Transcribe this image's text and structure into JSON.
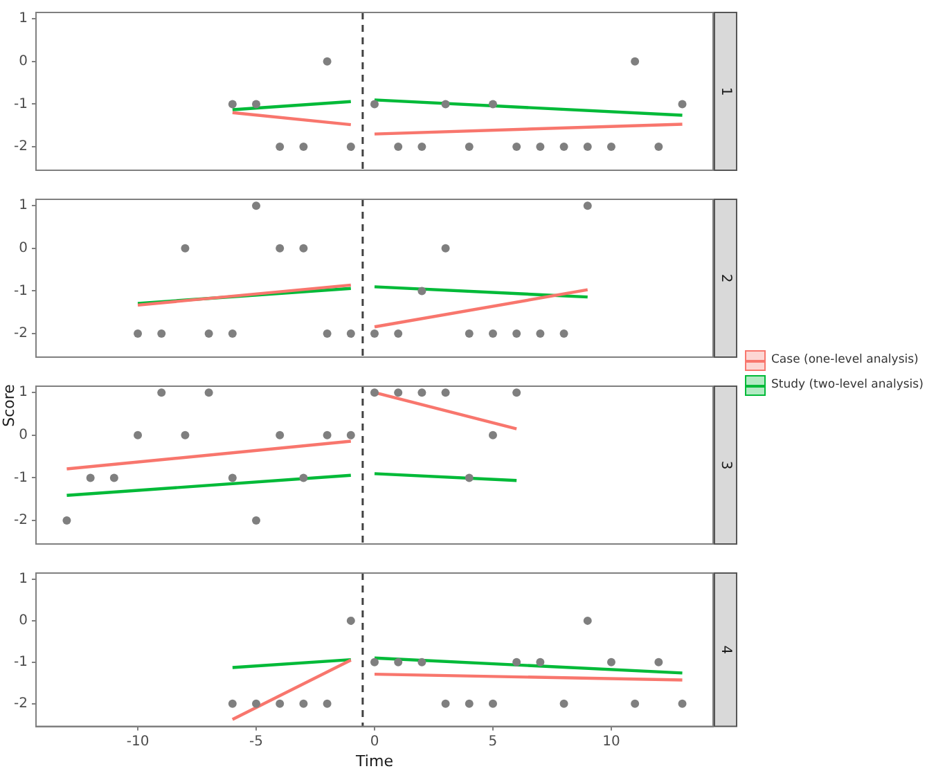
{
  "chart_data": [
    {
      "type": "scatter",
      "title": "1",
      "xlim": [
        -14.3,
        14.3
      ],
      "ylim": [
        -2.55,
        1.15
      ],
      "xticks": [
        -10,
        -5,
        0,
        5,
        10
      ],
      "yticks": [
        -2,
        -1,
        0,
        1
      ],
      "grid": false,
      "tick_labels": "y",
      "ref_lines": [
        {
          "axis": "x",
          "value": -0.5,
          "color": "#404040",
          "line_style": "dashed"
        }
      ],
      "series": [
        {
          "type": "scatter",
          "marker": "circle",
          "color": "#7f7f7f",
          "x": [
            -6,
            -5,
            -4,
            -3,
            -2,
            -1,
            0,
            1,
            2,
            3,
            4,
            5,
            6,
            7,
            8,
            9,
            10,
            11,
            12,
            13
          ],
          "values": [
            -1,
            -1,
            -2,
            -2,
            0,
            -2,
            -1,
            -2,
            -2,
            -1,
            -2,
            -1,
            -2,
            -2,
            -2,
            -2,
            -2,
            0,
            -2,
            -1
          ]
        },
        {
          "type": "line",
          "marker": "none",
          "color": "#f8766d",
          "x": [
            -6,
            -1
          ],
          "values": [
            -1.2,
            -1.48
          ]
        },
        {
          "type": "line",
          "marker": "none",
          "color": "#f8766d",
          "x": [
            0,
            13
          ],
          "values": [
            -1.7,
            -1.47
          ]
        },
        {
          "type": "line",
          "marker": "none",
          "color": "#00ba38",
          "x": [
            -6,
            -1
          ],
          "values": [
            -1.13,
            -0.94
          ]
        },
        {
          "type": "line",
          "marker": "none",
          "color": "#00ba38",
          "x": [
            0,
            13
          ],
          "values": [
            -0.9,
            -1.26
          ]
        }
      ]
    },
    {
      "type": "scatter",
      "title": "2",
      "xlim": [
        -14.3,
        14.3
      ],
      "ylim": [
        -2.55,
        1.15
      ],
      "xticks": [
        -10,
        -5,
        0,
        5,
        10
      ],
      "yticks": [
        -2,
        -1,
        0,
        1
      ],
      "grid": false,
      "tick_labels": "y",
      "legend": "right",
      "ref_lines": [
        {
          "axis": "x",
          "value": -0.5,
          "color": "#404040",
          "line_style": "dashed"
        }
      ],
      "series": [
        {
          "type": "scatter",
          "marker": "circle",
          "color": "#7f7f7f",
          "x": [
            -10,
            -9,
            -8,
            -7,
            -6,
            -5,
            -4,
            -3,
            -2,
            -1,
            0,
            1,
            2,
            3,
            4,
            5,
            6,
            7,
            8,
            9
          ],
          "values": [
            -2,
            -2,
            0,
            -2,
            -2,
            1,
            0,
            0,
            -2,
            -2,
            -2,
            -2,
            -1,
            0,
            -2,
            -2,
            -2,
            -2,
            -2,
            1
          ]
        },
        {
          "type": "line",
          "marker": "none",
          "name": "Case (one-level analysis)",
          "color": "#f8766d",
          "x": [
            -10,
            -1
          ],
          "values": [
            -1.33,
            -0.86
          ]
        },
        {
          "type": "line",
          "marker": "none",
          "color": "#f8766d",
          "x": [
            0,
            9
          ],
          "values": [
            -1.84,
            -0.97
          ]
        },
        {
          "type": "line",
          "marker": "none",
          "name": "Study (two-level analysis)",
          "color": "#00ba38",
          "x": [
            -10,
            -1
          ],
          "values": [
            -1.29,
            -0.94
          ]
        },
        {
          "type": "line",
          "marker": "none",
          "color": "#00ba38",
          "x": [
            0,
            9
          ],
          "values": [
            -0.9,
            -1.14
          ]
        }
      ]
    },
    {
      "type": "scatter",
      "title": "3",
      "ylabel": "Score",
      "xlim": [
        -14.3,
        14.3
      ],
      "ylim": [
        -2.55,
        1.15
      ],
      "xticks": [
        -10,
        -5,
        0,
        5,
        10
      ],
      "yticks": [
        -2,
        -1,
        0,
        1
      ],
      "grid": false,
      "tick_labels": "y",
      "ref_lines": [
        {
          "axis": "x",
          "value": -0.5,
          "color": "#404040",
          "line_style": "dashed"
        }
      ],
      "series": [
        {
          "type": "scatter",
          "marker": "circle",
          "color": "#7f7f7f",
          "x": [
            -13,
            -12,
            -11,
            -10,
            -9,
            -8,
            -7,
            -6,
            -5,
            -4,
            -3,
            -2,
            -1,
            0,
            1,
            2,
            3,
            4,
            5,
            6
          ],
          "values": [
            -2,
            -1,
            -1,
            0,
            1,
            0,
            1,
            -1,
            -2,
            0,
            -1,
            0,
            0,
            1,
            1,
            1,
            1,
            -1,
            0,
            1
          ]
        },
        {
          "type": "line",
          "marker": "none",
          "color": "#f8766d",
          "x": [
            -13,
            -1
          ],
          "values": [
            -0.79,
            -0.14
          ]
        },
        {
          "type": "line",
          "marker": "none",
          "color": "#f8766d",
          "x": [
            0,
            6
          ],
          "values": [
            1.0,
            0.15
          ]
        },
        {
          "type": "line",
          "marker": "none",
          "color": "#00ba38",
          "x": [
            -13,
            -1
          ],
          "values": [
            -1.41,
            -0.94
          ]
        },
        {
          "type": "line",
          "marker": "none",
          "color": "#00ba38",
          "x": [
            0,
            6
          ],
          "values": [
            -0.9,
            -1.06
          ]
        }
      ]
    },
    {
      "type": "scatter",
      "title": "4",
      "xlabel": "Time",
      "xlim": [
        -14.3,
        14.3
      ],
      "ylim": [
        -2.55,
        1.15
      ],
      "xticks": [
        -10,
        -5,
        0,
        5,
        10
      ],
      "yticks": [
        -2,
        -1,
        0,
        1
      ],
      "grid": false,
      "ref_lines": [
        {
          "axis": "x",
          "value": -0.5,
          "color": "#404040",
          "line_style": "dashed"
        }
      ],
      "series": [
        {
          "type": "scatter",
          "marker": "circle",
          "color": "#7f7f7f",
          "x": [
            -6,
            -5,
            -4,
            -3,
            -2,
            -1,
            0,
            1,
            2,
            3,
            4,
            5,
            6,
            7,
            8,
            9,
            10,
            11,
            12,
            13
          ],
          "values": [
            -2,
            -2,
            -2,
            -2,
            -2,
            0,
            -1,
            -1,
            -1,
            -2,
            -2,
            -2,
            -1,
            -1,
            -2,
            0,
            -1,
            -2,
            -1,
            -2
          ]
        },
        {
          "type": "line",
          "marker": "none",
          "color": "#f8766d",
          "x": [
            -6,
            -1
          ],
          "values": [
            -2.38,
            -0.95
          ]
        },
        {
          "type": "line",
          "marker": "none",
          "color": "#f8766d",
          "x": [
            0,
            13
          ],
          "values": [
            -1.29,
            -1.43
          ]
        },
        {
          "type": "line",
          "marker": "none",
          "color": "#00ba38",
          "x": [
            -6,
            -1
          ],
          "values": [
            -1.13,
            -0.94
          ]
        },
        {
          "type": "line",
          "marker": "none",
          "color": "#00ba38",
          "x": [
            0,
            13
          ],
          "values": [
            -0.9,
            -1.26
          ]
        }
      ]
    }
  ]
}
